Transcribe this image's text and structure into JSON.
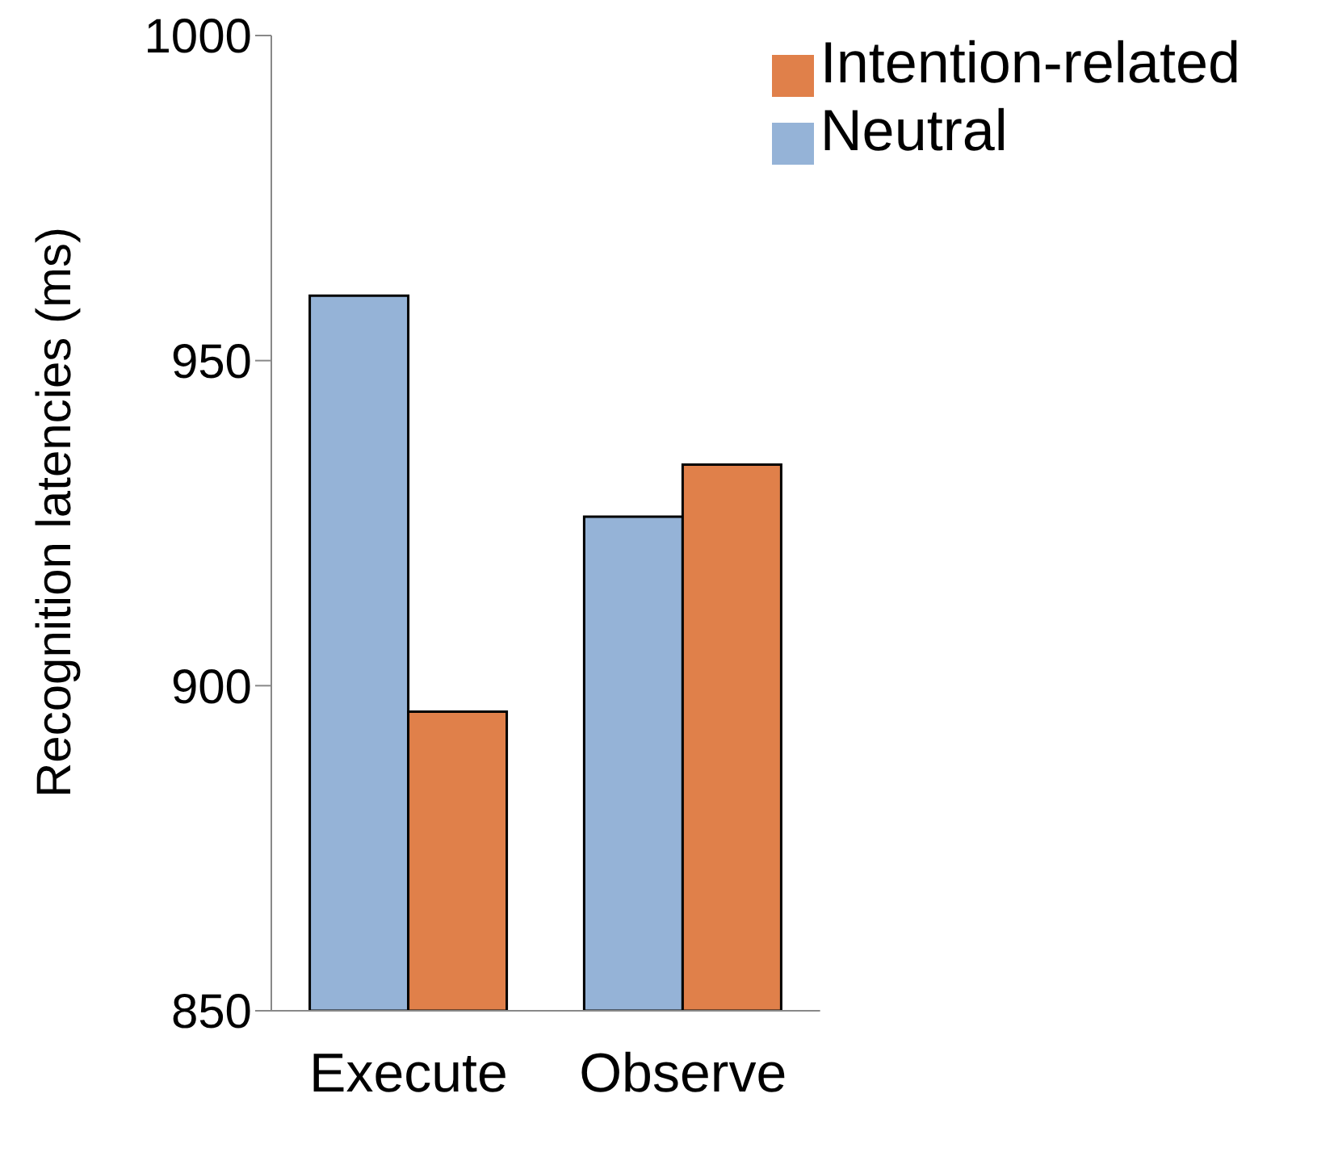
{
  "chart_data": {
    "type": "bar",
    "ylabel": "Recognition latencies (ms)",
    "categories": [
      "Execute",
      "Observe"
    ],
    "series": [
      {
        "name": "Neutral",
        "color": "#95b3d7",
        "values": [
          960,
          926
        ]
      },
      {
        "name": "Intention-related",
        "color": "#e0804a",
        "values": [
          896,
          934
        ]
      }
    ],
    "ylim": [
      850,
      1000
    ],
    "yticks": [
      850,
      900,
      950,
      1000
    ],
    "grid": false,
    "legend": "top right"
  }
}
